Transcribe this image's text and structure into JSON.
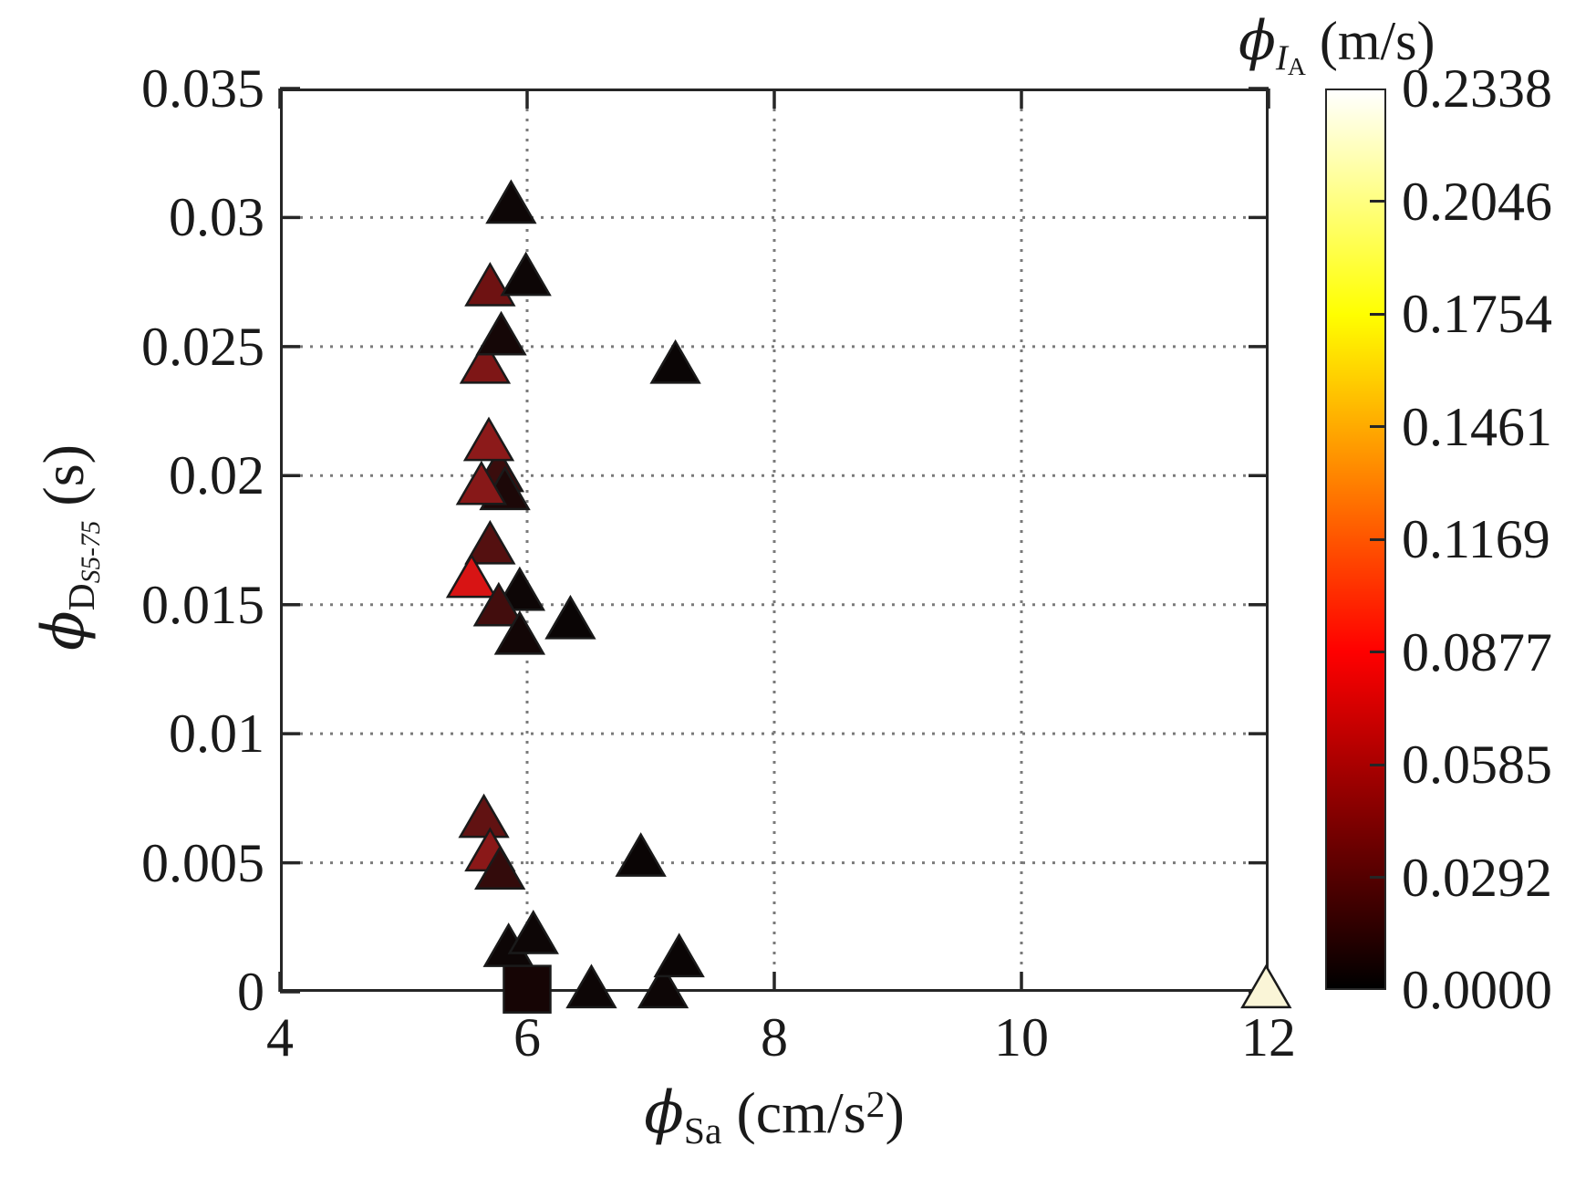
{
  "chart_data": {
    "type": "scatter",
    "title": "",
    "xlabel": {
      "phi": "ϕ",
      "sub": "Sa",
      "unit_pre": " (cm/s",
      "sup": "2",
      "unit_post": ")"
    },
    "ylabel": {
      "phi": "ϕ",
      "sub": "D",
      "subsub": "S5-75",
      "unit": " (s)"
    },
    "xlim": [
      4,
      12
    ],
    "ylim": [
      0,
      0.035
    ],
    "x_tick_values": [
      4,
      6,
      8,
      10,
      12
    ],
    "x_tick_labels": [
      "4",
      "6",
      "8",
      "10",
      "12"
    ],
    "y_tick_values": [
      0,
      0.005,
      0.01,
      0.015,
      0.02,
      0.025,
      0.03,
      0.035
    ],
    "y_tick_labels": [
      "0",
      "0.005",
      "0.01",
      "0.015",
      "0.02",
      "0.025",
      "0.03",
      "0.035"
    ],
    "grid_on": true,
    "grid_x": [
      6,
      8,
      10
    ],
    "grid_y": [
      0.005,
      0.01,
      0.015,
      0.02,
      0.025,
      0.03
    ],
    "grid_color": "#7a7a7a",
    "axis_color": "#262626",
    "colorbar": {
      "title": {
        "phi": "ϕ",
        "sub": "I",
        "subsub": "A",
        "unit": " (m/s)"
      },
      "tick_labels": [
        "0.2338",
        "0.2046",
        "0.1754",
        "0.1461",
        "0.1169",
        "0.0877",
        "0.0585",
        "0.0292",
        "0.0000"
      ],
      "vmin": 0.0,
      "vmax": 0.2338,
      "colormap": "hot",
      "gradient_stops_top_to_bottom": [
        "#ffffff",
        "#ffff00",
        "#ff0000",
        "#000000"
      ],
      "gradient_positions_pct": [
        0,
        25,
        62.5,
        100
      ]
    },
    "marker_outline": "#1a1a1a",
    "points": [
      {
        "x": 5.87,
        "y": 0.0306,
        "color": "#0d0606",
        "marker": "triangle"
      },
      {
        "x": 5.7,
        "y": 0.0274,
        "color": "#6e1212",
        "marker": "triangle"
      },
      {
        "x": 5.99,
        "y": 0.0278,
        "color": "#0d0606",
        "marker": "triangle"
      },
      {
        "x": 5.66,
        "y": 0.0244,
        "color": "#7e1616",
        "marker": "triangle"
      },
      {
        "x": 5.79,
        "y": 0.0255,
        "color": "#150707",
        "marker": "triangle"
      },
      {
        "x": 7.2,
        "y": 0.0244,
        "color": "#0a0505",
        "marker": "triangle"
      },
      {
        "x": 5.77,
        "y": 0.0202,
        "color": "#3a0d0d",
        "marker": "triangle"
      },
      {
        "x": 5.69,
        "y": 0.0214,
        "color": "#8c1a1a",
        "marker": "triangle"
      },
      {
        "x": 5.82,
        "y": 0.0195,
        "color": "#1c0808",
        "marker": "triangle"
      },
      {
        "x": 5.63,
        "y": 0.0197,
        "color": "#871818",
        "marker": "triangle"
      },
      {
        "x": 5.7,
        "y": 0.0174,
        "color": "#541010",
        "marker": "triangle"
      },
      {
        "x": 5.55,
        "y": 0.0161,
        "color": "#d81414",
        "marker": "triangle"
      },
      {
        "x": 5.94,
        "y": 0.0156,
        "color": "#0d0606",
        "marker": "triangle"
      },
      {
        "x": 6.35,
        "y": 0.0145,
        "color": "#0a0505",
        "marker": "triangle"
      },
      {
        "x": 5.77,
        "y": 0.015,
        "color": "#420d0d",
        "marker": "triangle"
      },
      {
        "x": 5.94,
        "y": 0.0139,
        "color": "#120606",
        "marker": "triangle"
      },
      {
        "x": 5.65,
        "y": 0.0068,
        "color": "#611212",
        "marker": "triangle"
      },
      {
        "x": 5.7,
        "y": 0.0055,
        "color": "#8a1818",
        "marker": "triangle"
      },
      {
        "x": 5.78,
        "y": 0.0048,
        "color": "#330b0b",
        "marker": "triangle"
      },
      {
        "x": 6.92,
        "y": 0.0053,
        "color": "#0a0505",
        "marker": "triangle"
      },
      {
        "x": 5.85,
        "y": 0.0018,
        "color": "#0d0606",
        "marker": "triangle"
      },
      {
        "x": 6.05,
        "y": 0.0023,
        "color": "#0d0606",
        "marker": "triangle"
      },
      {
        "x": 6.0,
        "y": 0.0001,
        "color": "#160505",
        "marker": "square"
      },
      {
        "x": 6.52,
        "y": 0.0002,
        "color": "#0d0606",
        "marker": "triangle"
      },
      {
        "x": 7.1,
        "y": 0.0002,
        "color": "#0d0606",
        "marker": "triangle"
      },
      {
        "x": 7.23,
        "y": 0.0014,
        "color": "#0a0505",
        "marker": "triangle"
      },
      {
        "x": 11.98,
        "y": 0.0002,
        "color": "#faf5d7",
        "marker": "triangle"
      }
    ]
  }
}
